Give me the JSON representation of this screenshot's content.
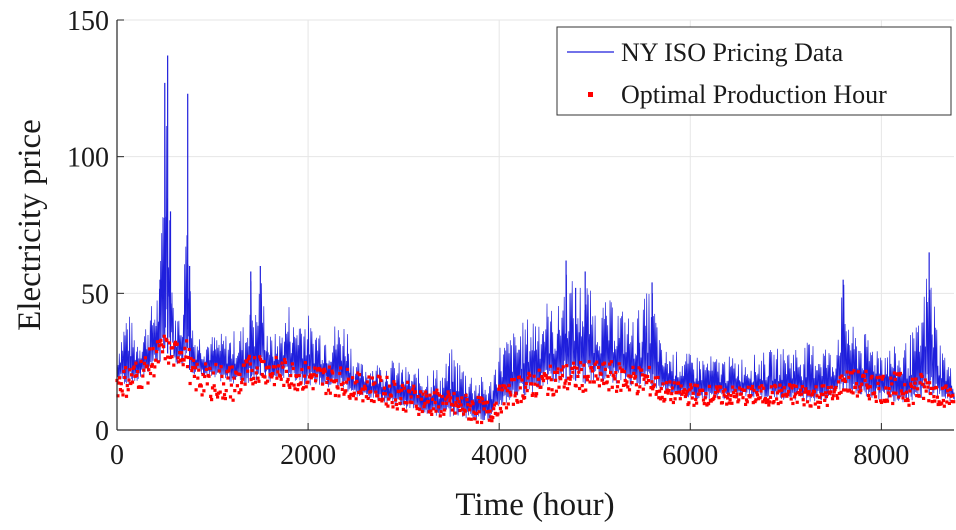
{
  "chart_data": {
    "type": "line",
    "xlabel": "Time (hour)",
    "ylabel": "Electricity price",
    "xlim": [
      0,
      8760
    ],
    "ylim": [
      0,
      150
    ],
    "xticks": [
      0,
      2000,
      4000,
      6000,
      8000
    ],
    "yticks": [
      0,
      50,
      100,
      150
    ],
    "xtick_labels": [
      "0",
      "2000",
      "4000",
      "6000",
      "8000"
    ],
    "ytick_labels": [
      "0",
      "50",
      "100",
      "150"
    ],
    "grid": true,
    "legend_position": "top-right",
    "series": [
      {
        "name": "NY ISO Pricing Data",
        "style": "line",
        "color": "#1f1fdc",
        "x": [
          0,
          100,
          200,
          300,
          400,
          450,
          500,
          530,
          560,
          600,
          650,
          700,
          740,
          760,
          800,
          1000,
          1200,
          1350,
          1400,
          1450,
          1500,
          1550,
          1600,
          1700,
          1800,
          1850,
          1900,
          2000,
          2050,
          2100,
          2200,
          2300,
          2400,
          2500,
          2700,
          2900,
          3100,
          3300,
          3400,
          3500,
          3700,
          3900,
          4000,
          4200,
          4400,
          4500,
          4600,
          4700,
          4800,
          4900,
          5000,
          5200,
          5400,
          5600,
          5700,
          6000,
          6300,
          6600,
          7000,
          7400,
          7500,
          7600,
          7700,
          8000,
          8200,
          8400,
          8500,
          8600,
          8760
        ],
        "values": [
          30,
          46,
          35,
          40,
          50,
          55,
          127,
          137,
          80,
          40,
          45,
          50,
          123,
          60,
          37,
          35,
          36,
          40,
          58,
          44,
          60,
          45,
          35,
          36,
          47,
          40,
          45,
          43,
          37,
          40,
          38,
          40,
          41,
          25,
          25,
          26,
          22,
          24,
          22,
          30,
          22,
          18,
          32,
          38,
          45,
          48,
          42,
          62,
          52,
          58,
          46,
          48,
          41,
          54,
          30,
          28,
          27,
          27,
          31,
          33,
          28,
          55,
          38,
          32,
          30,
          40,
          65,
          35,
          20
        ],
        "lows": [
          18,
          16,
          17,
          20,
          24,
          25,
          30,
          28,
          26,
          24,
          23,
          25,
          30,
          22,
          20,
          18,
          17,
          16,
          19,
          18,
          20,
          18,
          17,
          18,
          19,
          18,
          17,
          16,
          17,
          16,
          15,
          15,
          14,
          12,
          11,
          9,
          7,
          5,
          4,
          5,
          4,
          3,
          8,
          12,
          14,
          16,
          17,
          18,
          18,
          17,
          18,
          17,
          16,
          15,
          14,
          11,
          11,
          12,
          11,
          10,
          12,
          15,
          12,
          11,
          10,
          11,
          13,
          11,
          10
        ]
      },
      {
        "name": "Optimal Production Hour",
        "style": "markers",
        "color": "#ff0000",
        "x": [
          0,
          100,
          200,
          300,
          400,
          450,
          500,
          550,
          600,
          650,
          700,
          740,
          780,
          900,
          1000,
          1200,
          1350,
          1400,
          1500,
          1600,
          1800,
          2000,
          2200,
          2400,
          2500,
          2700,
          2900,
          3100,
          3300,
          3500,
          3700,
          3900,
          4000,
          4200,
          4400,
          4600,
          4800,
          5000,
          5200,
          5400,
          5600,
          5700,
          6000,
          6300,
          6600,
          7000,
          7400,
          7500,
          7600,
          7700,
          8000,
          8200,
          8400,
          8500,
          8600,
          8760
        ],
        "values": [
          22,
          24,
          26,
          28,
          32,
          34,
          35,
          33,
          32,
          35,
          34,
          33,
          26,
          24,
          25,
          24,
          26,
          28,
          29,
          27,
          26,
          25,
          24,
          23,
          21,
          20,
          19,
          17,
          15,
          14,
          13,
          11,
          16,
          20,
          22,
          24,
          25,
          25,
          25,
          24,
          23,
          18,
          17,
          16,
          16,
          17,
          17,
          16,
          22,
          22,
          21,
          21,
          21,
          20,
          18,
          15
        ],
        "lows": [
          12,
          12,
          14,
          16,
          20,
          22,
          25,
          23,
          22,
          24,
          23,
          22,
          14,
          12,
          11,
          10,
          12,
          16,
          18,
          16,
          15,
          14,
          13,
          12,
          11,
          10,
          8,
          6,
          5,
          4,
          3,
          2,
          6,
          10,
          12,
          13,
          14,
          14,
          14,
          13,
          12,
          10,
          9,
          9,
          9,
          9,
          8,
          9,
          14,
          12,
          10,
          9,
          9,
          10,
          9,
          8
        ]
      }
    ]
  }
}
